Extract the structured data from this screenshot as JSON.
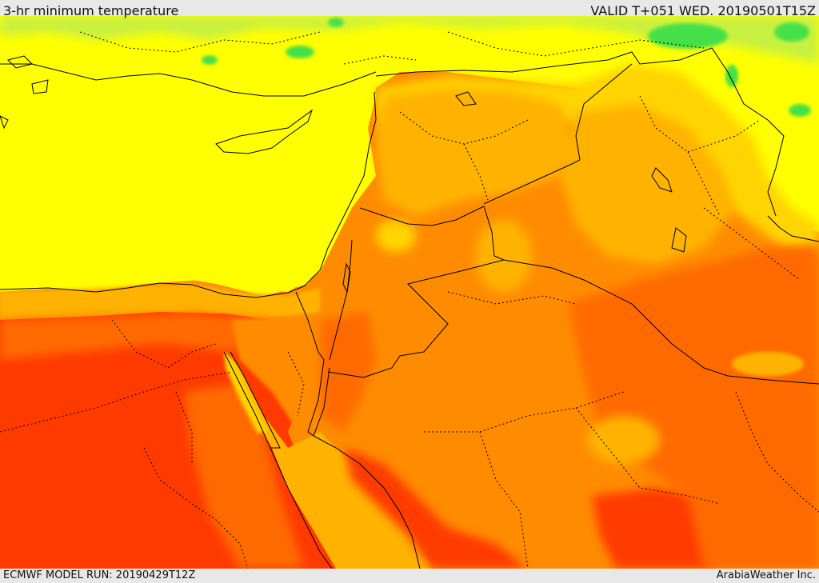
{
  "header": {
    "title": "3-hr minimum temperature",
    "valid": "VALID T+051 WED. 20190501T15Z"
  },
  "footer": {
    "model_run": "ECMWF MODEL RUN: 20190429T12Z",
    "credit": "ArabiaWeather Inc."
  },
  "colors": {
    "frame": "#e8e8e8",
    "green": "#44e04a",
    "yellow_green": "#c8f040",
    "yellow": "#ffff00",
    "yellow_orange": "#ffd400",
    "amber": "#ffb300",
    "orange": "#ff8c00",
    "dark_orange": "#ff6a00",
    "red": "#ff3a00"
  }
}
